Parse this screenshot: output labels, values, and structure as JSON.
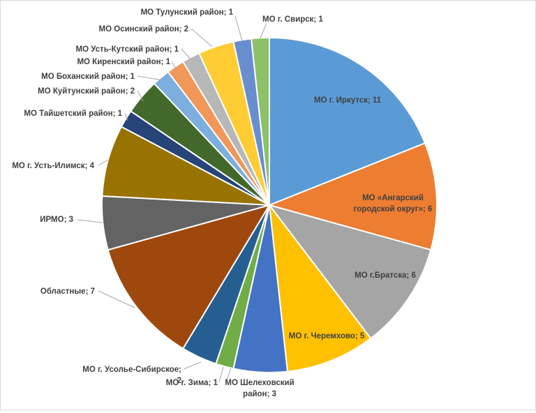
{
  "chart_data": {
    "type": "pie",
    "title": "",
    "unit": "",
    "slices": [
      {
        "label": "МО г. Иркутск",
        "value": 11,
        "color": "#5b9bd5",
        "text": "МО г. Иркутск; 11"
      },
      {
        "label": "МО «Ангарский городской округ»",
        "value": 6,
        "color": "#ed7d31",
        "text": "МО «Ангарский городской округ»; 6"
      },
      {
        "label": "МО г.Братска",
        "value": 6,
        "color": "#a5a5a5",
        "text": "МО г.Братска; 6"
      },
      {
        "label": "МО г. Черемхово",
        "value": 5,
        "color": "#ffc000",
        "text": "МО г. Черемхово; 5"
      },
      {
        "label": "МО Шелеховский район",
        "value": 3,
        "color": "#4472c4",
        "text": "МО Шелеховский район; 3"
      },
      {
        "label": "МО г. Зима",
        "value": 1,
        "color": "#70ad47",
        "text": "МО г. Зима; 1"
      },
      {
        "label": "МО г. Усолье-Сибирское",
        "value": 2,
        "color": "#255e91",
        "text": "МО г. Усолье-Сибирское; 2"
      },
      {
        "label": "Областные",
        "value": 7,
        "color": "#9e480e",
        "text": "Областные; 7"
      },
      {
        "label": "ИРМО",
        "value": 3,
        "color": "#636363",
        "text": "ИРМО; 3"
      },
      {
        "label": "МО г. Усть-Илимск",
        "value": 4,
        "color": "#997300",
        "text": "МО г. Усть-Илимск; 4"
      },
      {
        "label": "МО Тайшетский район",
        "value": 1,
        "color": "#264478",
        "text": "МО Тайшетский район; 1"
      },
      {
        "label": "МО Куйтунский район",
        "value": 2,
        "color": "#43682b",
        "text": "МО Куйтунский район; 2"
      },
      {
        "label": "МО Боханский район",
        "value": 1,
        "color": "#7cafdd",
        "text": "МО Боханский район; 1"
      },
      {
        "label": "МО Киренский район",
        "value": 1,
        "color": "#f1975a",
        "text": "МО Киренский район; 1"
      },
      {
        "label": "МО Усть-Кутский район",
        "value": 1,
        "color": "#b7b7b7",
        "text": "МО Усть-Кутский район; 1"
      },
      {
        "label": "МО Осинский район",
        "value": 2,
        "color": "#ffcd33",
        "text": "МО Осинский район; 2"
      },
      {
        "label": "МО Тулунский район",
        "value": 1,
        "color": "#698ed0",
        "text": "МО Тулунский район; 1"
      },
      {
        "label": "МО г. Свирск",
        "value": 1,
        "color": "#8cc168",
        "text": "МО г. Свирск; 1"
      }
    ],
    "legend": "none"
  }
}
